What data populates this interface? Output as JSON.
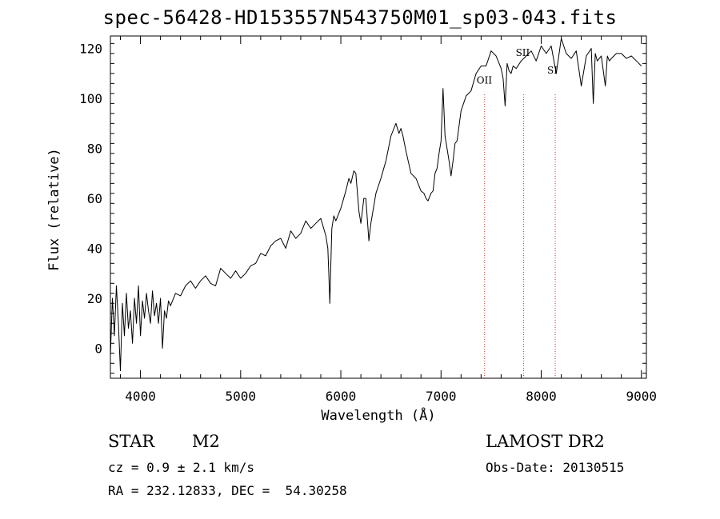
{
  "chart_data": {
    "type": "line",
    "title": "spec-56428-HD153557N543750M01_sp03-043.fits",
    "xlabel": "Wavelength (Å)",
    "ylabel": "Flux (relative)",
    "xlim": [
      3700,
      9050
    ],
    "ylim": [
      -12,
      125
    ],
    "xticks": [
      4000,
      5000,
      6000,
      7000,
      8000,
      9000
    ],
    "yticks": [
      0,
      20,
      40,
      60,
      80,
      100,
      120
    ],
    "grid": false,
    "series": [
      {
        "x": [
          3700,
          3720,
          3740,
          3760,
          3780,
          3800,
          3820,
          3840,
          3860,
          3880,
          3900,
          3920,
          3940,
          3960,
          3980,
          4000,
          4020,
          4040,
          4060,
          4080,
          4100,
          4120,
          4140,
          4160,
          4180,
          4200,
          4220,
          4240,
          4260,
          4280,
          4300,
          4350,
          4400,
          4450,
          4500,
          4550,
          4600,
          4650,
          4700,
          4750,
          4800,
          4850,
          4900,
          4950,
          5000,
          5050,
          5100,
          5150,
          5200,
          5250,
          5300,
          5350,
          5400,
          5450,
          5500,
          5550,
          5600,
          5650,
          5700,
          5750,
          5800,
          5850,
          5870,
          5880,
          5890,
          5900,
          5910,
          5930,
          5950,
          6000,
          6050,
          6080,
          6100,
          6130,
          6150,
          6180,
          6200,
          6230,
          6250,
          6280,
          6300,
          6350,
          6400,
          6450,
          6500,
          6550,
          6580,
          6600,
          6620,
          6650,
          6700,
          6750,
          6800,
          6830,
          6850,
          6870,
          6900,
          6920,
          6940,
          6960,
          6980,
          7000,
          7020,
          7040,
          7060,
          7080,
          7100,
          7120,
          7140,
          7160,
          7200,
          7250,
          7300,
          7350,
          7400,
          7450,
          7500,
          7550,
          7600,
          7620,
          7640,
          7660,
          7680,
          7700,
          7720,
          7750,
          7800,
          7850,
          7900,
          7950,
          8000,
          8050,
          8100,
          8150,
          8200,
          8250,
          8300,
          8350,
          8400,
          8450,
          8500,
          8520,
          8540,
          8560,
          8600,
          8640,
          8660,
          8680,
          8700,
          8750,
          8800,
          8850,
          8900,
          8950,
          9000
        ],
        "y": [
          -3,
          20,
          5,
          25,
          10,
          -9,
          18,
          5,
          22,
          8,
          15,
          2,
          20,
          10,
          25,
          5,
          19,
          12,
          22,
          15,
          10,
          23,
          13,
          18,
          10,
          20,
          0,
          15,
          12,
          19,
          17,
          22,
          21,
          25,
          27,
          24,
          27,
          29,
          26,
          25,
          32,
          30,
          28,
          31,
          28,
          30,
          33,
          34,
          38,
          37,
          41,
          43,
          44,
          40,
          47,
          44,
          46,
          51,
          48,
          50,
          52,
          45,
          40,
          30,
          18,
          33,
          48,
          53,
          51,
          56,
          63,
          68,
          66,
          71,
          70,
          55,
          50,
          60,
          60,
          43,
          50,
          62,
          68,
          75,
          85,
          90,
          86,
          88,
          85,
          79,
          70,
          68,
          63,
          62,
          60,
          59,
          62,
          63,
          70,
          72,
          78,
          83,
          104,
          85,
          80,
          75,
          69,
          75,
          82,
          83,
          95,
          101,
          103,
          110,
          113,
          113,
          119,
          117,
          112,
          108,
          97,
          114,
          111,
          110,
          113,
          112,
          115,
          117,
          119,
          115,
          121,
          118,
          121,
          110,
          124,
          118,
          116,
          119,
          105,
          117,
          120,
          98,
          118,
          115,
          117,
          105,
          117,
          115,
          116,
          118,
          118,
          116,
          117,
          115,
          113
        ]
      }
    ],
    "annotations": [
      {
        "label": "OII",
        "x": 7435
      },
      {
        "label": "SII",
        "x": 7825
      },
      {
        "label": "SI",
        "x": 8140
      }
    ],
    "line_color": "#000000",
    "marker_line_color": "#c0392b"
  },
  "info": {
    "object_type": "STAR",
    "subclass": "M2",
    "survey": "LAMOST DR2",
    "cz": "cz = 0.9 ± 2.1 km/s",
    "obs_date": "Obs-Date: 20130515",
    "coords": "RA = 232.12833, DEC =  54.30258"
  }
}
